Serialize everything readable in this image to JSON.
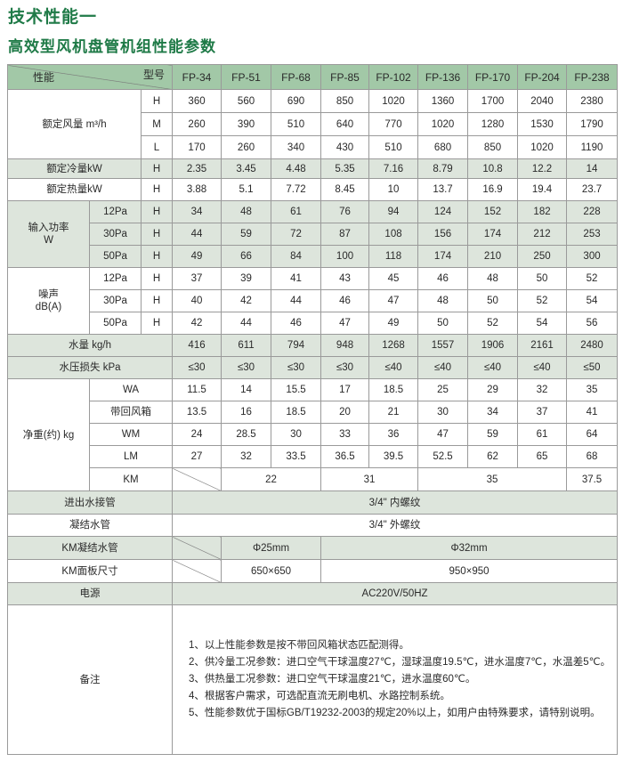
{
  "title": "技术性能一",
  "subtitle": "高效型风机盘管机组性能参数",
  "colors": {
    "title": "#1f7a47",
    "header_bg": "#a2c8a7",
    "shaded_row_bg": "#dde5dc"
  },
  "table": {
    "header": {
      "performance": "性能",
      "model": "型号",
      "models": [
        "FP-34",
        "FP-51",
        "FP-68",
        "FP-85",
        "FP-102",
        "FP-136",
        "FP-170",
        "FP-204",
        "FP-238"
      ]
    },
    "airflow": {
      "label": "额定风量 m³/h",
      "rows": [
        {
          "speed": "H",
          "values": [
            "360",
            "560",
            "690",
            "850",
            "1020",
            "1360",
            "1700",
            "2040",
            "2380"
          ]
        },
        {
          "speed": "M",
          "values": [
            "260",
            "390",
            "510",
            "640",
            "770",
            "1020",
            "1280",
            "1530",
            "1790"
          ]
        },
        {
          "speed": "L",
          "values": [
            "170",
            "260",
            "340",
            "430",
            "510",
            "680",
            "850",
            "1020",
            "1190"
          ]
        }
      ]
    },
    "cooling": {
      "label": "额定冷量kW",
      "speed": "H",
      "values": [
        "2.35",
        "3.45",
        "4.48",
        "5.35",
        "7.16",
        "8.79",
        "10.8",
        "12.2",
        "14"
      ]
    },
    "heating": {
      "label": "额定热量kW",
      "speed": "H",
      "values": [
        "3.88",
        "5.1",
        "7.72",
        "8.45",
        "10",
        "13.7",
        "16.9",
        "19.4",
        "23.7"
      ]
    },
    "power": {
      "label": "输入功率",
      "unit": "W",
      "rows": [
        {
          "pressure": "12Pa",
          "speed": "H",
          "values": [
            "34",
            "48",
            "61",
            "76",
            "94",
            "124",
            "152",
            "182",
            "228"
          ]
        },
        {
          "pressure": "30Pa",
          "speed": "H",
          "values": [
            "44",
            "59",
            "72",
            "87",
            "108",
            "156",
            "174",
            "212",
            "253"
          ]
        },
        {
          "pressure": "50Pa",
          "speed": "H",
          "values": [
            "49",
            "66",
            "84",
            "100",
            "118",
            "174",
            "210",
            "250",
            "300"
          ]
        }
      ]
    },
    "noise": {
      "label": "噪声",
      "unit": "dB(A)",
      "rows": [
        {
          "pressure": "12Pa",
          "speed": "H",
          "values": [
            "37",
            "39",
            "41",
            "43",
            "45",
            "46",
            "48",
            "50",
            "52"
          ]
        },
        {
          "pressure": "30Pa",
          "speed": "H",
          "values": [
            "40",
            "42",
            "44",
            "46",
            "47",
            "48",
            "50",
            "52",
            "54"
          ]
        },
        {
          "pressure": "50Pa",
          "speed": "H",
          "values": [
            "42",
            "44",
            "46",
            "47",
            "49",
            "50",
            "52",
            "54",
            "56"
          ]
        }
      ]
    },
    "water_flow": {
      "label": "水量 kg/h",
      "values": [
        "416",
        "611",
        "794",
        "948",
        "1268",
        "1557",
        "1906",
        "2161",
        "2480"
      ]
    },
    "pressure_loss": {
      "label": "水压损失 kPa",
      "values": [
        "≤30",
        "≤30",
        "≤30",
        "≤30",
        "≤40",
        "≤40",
        "≤40",
        "≤40",
        "≤50"
      ]
    },
    "weight": {
      "label": "净重(约) kg",
      "rows": [
        {
          "type": "WA",
          "values": [
            "11.5",
            "14",
            "15.5",
            "17",
            "18.5",
            "25",
            "29",
            "32",
            "35"
          ]
        },
        {
          "type": "带回风箱",
          "values": [
            "13.5",
            "16",
            "18.5",
            "20",
            "21",
            "30",
            "34",
            "37",
            "41"
          ]
        },
        {
          "type": "WM",
          "values": [
            "24",
            "28.5",
            "30",
            "33",
            "36",
            "47",
            "59",
            "61",
            "64"
          ]
        },
        {
          "type": "LM",
          "values": [
            "27",
            "32",
            "33.5",
            "36.5",
            "39.5",
            "52.5",
            "62",
            "65",
            "68"
          ]
        }
      ],
      "km": {
        "type": "KM",
        "values": [
          "22",
          "31",
          "35",
          "37.5"
        ]
      }
    },
    "inlet_outlet": {
      "label": "进出水接管",
      "value": "3/4\" 内螺纹"
    },
    "condensate": {
      "label": "凝结水管",
      "value": "3/4\" 外螺纹"
    },
    "km_condensate": {
      "label": "KM凝结水管",
      "values": [
        "Φ25mm",
        "Φ32mm"
      ]
    },
    "km_panel": {
      "label": "KM面板尺寸",
      "values": [
        "650×650",
        "950×950"
      ]
    },
    "power_supply": {
      "label": "电源",
      "value": "AC220V/50HZ"
    },
    "notes": {
      "label": "备注",
      "items": [
        "1、以上性能参数是按不带回风箱状态匹配测得。",
        "2、供冷量工况参数：进口空气干球温度27℃，湿球温度19.5℃，进水温度7℃，水温差5℃。",
        "3、供热量工况参数：进口空气干球温度21℃，进水温度60℃。",
        "4、根据客户需求，可选配直流无刷电机、水路控制系统。",
        "5、性能参数优于国标GB/T19232-2003的规定20%以上，如用户由特殊要求，请特别说明。"
      ]
    }
  }
}
